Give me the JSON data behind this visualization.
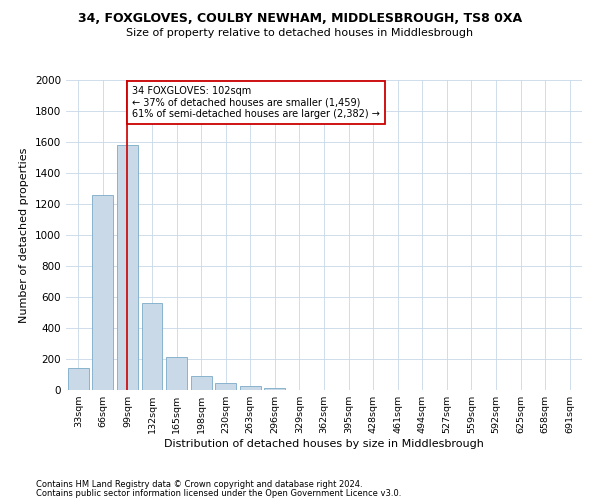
{
  "title1": "34, FOXGLOVES, COULBY NEWHAM, MIDDLESBROUGH, TS8 0XA",
  "title2": "Size of property relative to detached houses in Middlesbrough",
  "xlabel": "Distribution of detached houses by size in Middlesbrough",
  "ylabel": "Number of detached properties",
  "footer1": "Contains HM Land Registry data © Crown copyright and database right 2024.",
  "footer2": "Contains public sector information licensed under the Open Government Licence v3.0.",
  "bar_color": "#c9d9e8",
  "bar_edge_color": "#7aaac8",
  "categories": [
    "33sqm",
    "66sqm",
    "99sqm",
    "132sqm",
    "165sqm",
    "198sqm",
    "230sqm",
    "263sqm",
    "296sqm",
    "329sqm",
    "362sqm",
    "395sqm",
    "428sqm",
    "461sqm",
    "494sqm",
    "527sqm",
    "559sqm",
    "592sqm",
    "625sqm",
    "658sqm",
    "691sqm"
  ],
  "values": [
    140,
    1260,
    1580,
    560,
    215,
    90,
    45,
    25,
    15,
    0,
    0,
    0,
    0,
    0,
    0,
    0,
    0,
    0,
    0,
    0,
    0
  ],
  "ylim": [
    0,
    2000
  ],
  "yticks": [
    0,
    200,
    400,
    600,
    800,
    1000,
    1200,
    1400,
    1600,
    1800,
    2000
  ],
  "property_line_x": 2,
  "annotation_line1": "34 FOXGLOVES: 102sqm",
  "annotation_line2": "← 37% of detached houses are smaller (1,459)",
  "annotation_line3": "61% of semi-detached houses are larger (2,382) →",
  "annotation_box_color": "#ffffff",
  "annotation_box_edge": "#cc0000",
  "red_line_color": "#cc0000",
  "background_color": "#ffffff",
  "grid_color": "#c8d8e8"
}
